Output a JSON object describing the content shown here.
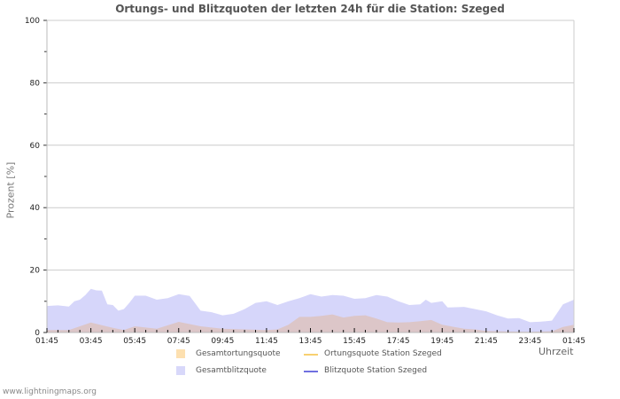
{
  "chart_data": {
    "type": "area",
    "title": "Ortungs- und Blitzquoten der letzten 24h für die Station: Szeged",
    "xlabel": "Uhrzeit",
    "ylabel": "Prozent   [%]",
    "ylim": [
      0,
      100
    ],
    "yticks": [
      0,
      20,
      40,
      60,
      80,
      100
    ],
    "xticks": [
      "01:45",
      "03:45",
      "05:45",
      "07:45",
      "09:45",
      "11:45",
      "13:45",
      "15:45",
      "17:45",
      "19:45",
      "21:45",
      "23:45",
      "01:45"
    ],
    "grid": true,
    "legend_position": "bottom",
    "series": [
      {
        "name": "Gesamtblitzquote",
        "kind": "area",
        "color": "#d6d6fa",
        "x_hours": [
          0,
          0.5,
          1,
          1.25,
          1.5,
          1.75,
          2,
          2.25,
          2.5,
          2.75,
          3,
          3.25,
          3.5,
          3.75,
          4,
          4.5,
          5,
          5.5,
          6,
          6.5,
          7,
          7.5,
          8,
          8.5,
          9,
          9.5,
          10,
          10.5,
          11,
          11.5,
          12,
          12.5,
          13,
          13.5,
          14,
          14.5,
          15,
          15.5,
          16,
          16.5,
          17,
          17.25,
          17.5,
          18,
          18.25,
          19,
          19.5,
          20,
          20.5,
          21,
          21.5,
          22,
          22.5,
          23,
          23.5,
          24
        ],
        "values": [
          8.5,
          8.7,
          8.3,
          10,
          10.5,
          12,
          14,
          13.5,
          13.4,
          9,
          8.8,
          7,
          7.5,
          9.5,
          11.8,
          11.8,
          10.5,
          11,
          12.3,
          11.7,
          7,
          6.5,
          5.5,
          6,
          7.5,
          9.5,
          10,
          8.8,
          10,
          11,
          12.3,
          11.5,
          12,
          11.8,
          10.8,
          11,
          12,
          11.5,
          10,
          8.8,
          9,
          10.5,
          9.5,
          10,
          8,
          8.2,
          7.5,
          6.8,
          5.5,
          4.5,
          4.6,
          3.3,
          3.5,
          3.8,
          9,
          10.5
        ]
      },
      {
        "name": "Gesamtortungsquote",
        "kind": "area",
        "color": "#f8dba8",
        "x_hours": [
          0,
          1,
          2,
          3,
          3.5,
          4,
          5,
          6,
          7,
          8,
          9,
          10,
          10.5,
          11,
          11.5,
          12,
          12.5,
          13,
          13.5,
          14,
          14.5,
          15,
          15.5,
          16,
          16.5,
          17,
          17.5,
          18,
          19,
          19.5,
          20,
          21,
          22,
          23,
          23.5,
          24
        ],
        "values": [
          0.8,
          0.8,
          3.2,
          1.5,
          0.8,
          2,
          1.2,
          3.4,
          2,
          1.2,
          1,
          0.8,
          1,
          2.5,
          5,
          5,
          5.3,
          5.8,
          4.8,
          5.3,
          5.5,
          4.5,
          3.3,
          3.2,
          3.3,
          3.6,
          4,
          2.5,
          1.2,
          1,
          0.5,
          0.3,
          0.2,
          0.4,
          1.8,
          2.5
        ]
      },
      {
        "name": "Ortungsquote Station Szeged",
        "kind": "line",
        "color": "#f8d070",
        "values": []
      },
      {
        "name": "Blitzquote Station Szeged",
        "kind": "line",
        "color": "#7070e0",
        "values": []
      }
    ]
  },
  "page": {
    "title": "Ortungs- und Blitzquoten der letzten 24h für die Station: Szeged",
    "ylabel": "Prozent   [%]",
    "xunit": "Uhrzeit",
    "footer": "www.lightningmaps.org"
  },
  "legend": {
    "items": [
      {
        "label": "Gesamtortungsquote",
        "type": "swatch",
        "color": "#fde0b0"
      },
      {
        "label": "Ortungsquote Station Szeged",
        "type": "line",
        "color": "#f8d070"
      },
      {
        "label": "Gesamtblitzquote",
        "type": "swatch",
        "color": "#d8d8fa"
      },
      {
        "label": "Blitzquote Station Szeged",
        "type": "line",
        "color": "#7070e0"
      }
    ]
  }
}
